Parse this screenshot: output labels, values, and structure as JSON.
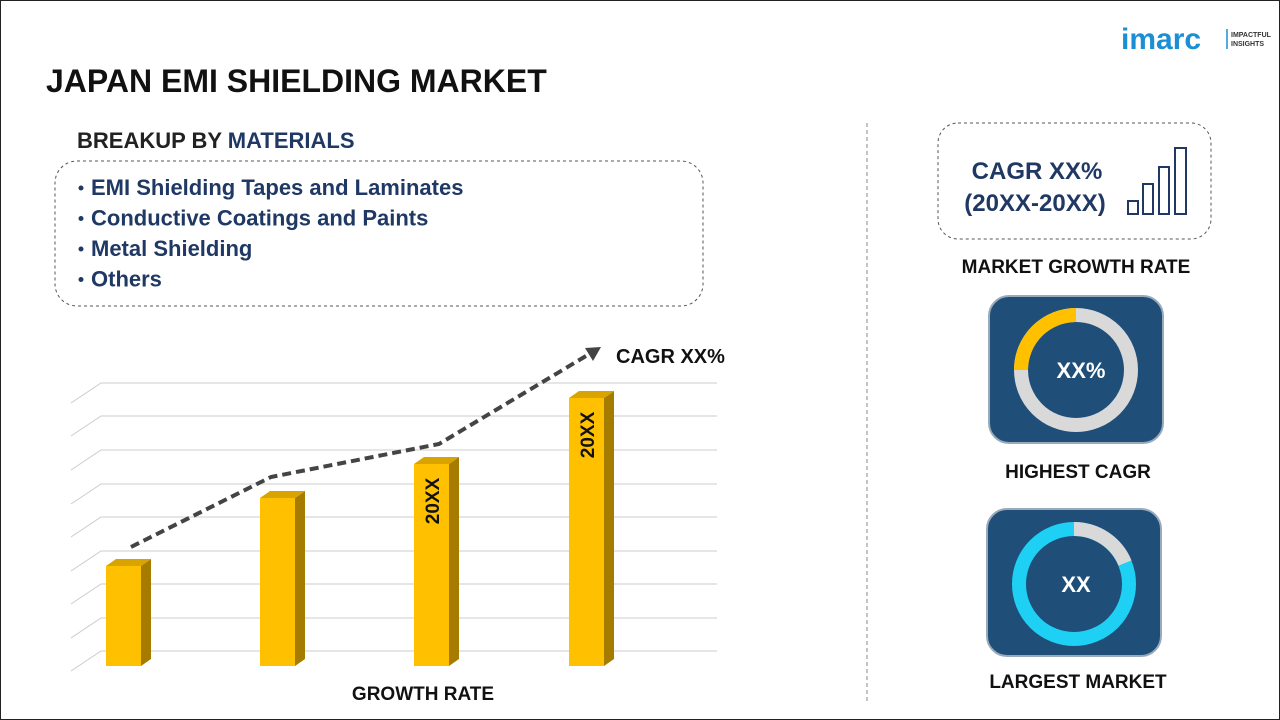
{
  "header": {
    "title": "JAPAN EMI SHIELDING MARKET"
  },
  "logo": {
    "brand": "imarc",
    "tagline_1": "IMPACTFUL",
    "tagline_2": "INSIGHTS"
  },
  "breakup": {
    "heading_prefix": "BREAKUP BY",
    "heading_highlight": "MATERIALS",
    "items": [
      "EMI Shielding Tapes and Laminates",
      "Conductive Coatings and Paints",
      "Metal Shielding",
      "Others"
    ]
  },
  "growth_chart": {
    "cagr_label": "CAGR XX%",
    "bar_labels": [
      "20XX",
      "20XX"
    ],
    "axis_label": "GROWTH RATE"
  },
  "market_growth": {
    "cagr": "CAGR XX%",
    "period": "(20XX-20XX)",
    "label": "MARKET GROWTH RATE"
  },
  "highest_cagr": {
    "value": "XX%",
    "label": "HIGHEST CAGR"
  },
  "largest_market": {
    "value": "XX",
    "label": "LARGEST MARKET"
  }
}
